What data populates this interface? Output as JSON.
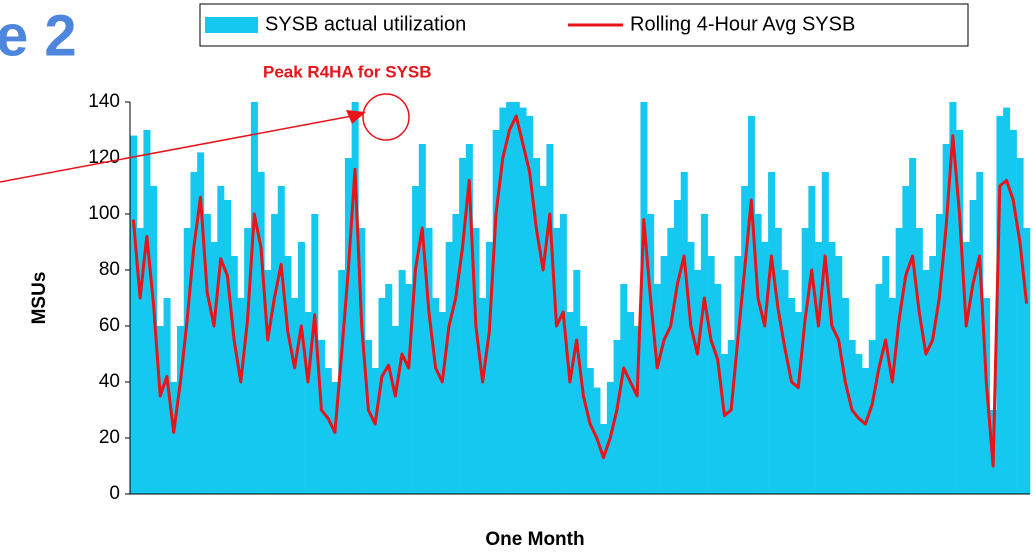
{
  "chart_data": {
    "type": "bar_line",
    "title": "e 2",
    "annotation": "Peak R4HA for SYSB",
    "ylabel": "MSUs",
    "xlabel": "One Month",
    "ylim": [
      0,
      140
    ],
    "yticks": [
      0,
      20,
      40,
      60,
      80,
      100,
      120,
      140
    ],
    "series": [
      {
        "name": "SYSB actual utilization",
        "type": "bar",
        "color": "#14c8f0",
        "values": [
          128,
          95,
          130,
          110,
          60,
          70,
          40,
          60,
          95,
          115,
          122,
          100,
          90,
          110,
          105,
          85,
          70,
          95,
          140,
          115,
          80,
          100,
          110,
          85,
          70,
          90,
          65,
          100,
          55,
          45,
          40,
          80,
          120,
          140,
          95,
          55,
          45,
          70,
          75,
          60,
          80,
          75,
          110,
          125,
          95,
          70,
          65,
          90,
          100,
          120,
          125,
          95,
          70,
          90,
          130,
          138,
          140,
          140,
          138,
          135,
          120,
          110,
          125,
          95,
          100,
          65,
          80,
          60,
          45,
          38,
          25,
          40,
          55,
          75,
          65,
          60,
          140,
          100,
          75,
          85,
          95,
          105,
          115,
          90,
          80,
          100,
          85,
          75,
          50,
          55,
          85,
          110,
          135,
          100,
          90,
          115,
          95,
          80,
          70,
          65,
          95,
          110,
          90,
          115,
          90,
          85,
          70,
          55,
          50,
          45,
          55,
          75,
          85,
          70,
          95,
          110,
          120,
          95,
          80,
          85,
          100,
          125,
          140,
          130,
          90,
          105,
          115,
          70,
          30,
          135,
          138,
          130,
          120,
          95
        ]
      },
      {
        "name": "Rolling 4-Hour Avg SYSB",
        "type": "line",
        "color": "#e8141a",
        "values": [
          98,
          70,
          92,
          68,
          35,
          42,
          22,
          40,
          62,
          88,
          106,
          72,
          60,
          84,
          78,
          55,
          40,
          62,
          100,
          88,
          55,
          70,
          82,
          58,
          45,
          60,
          40,
          64,
          30,
          27,
          22,
          50,
          80,
          116,
          60,
          30,
          25,
          42,
          46,
          35,
          50,
          45,
          80,
          95,
          65,
          45,
          40,
          60,
          70,
          88,
          112,
          60,
          40,
          58,
          100,
          120,
          130,
          135,
          125,
          115,
          95,
          80,
          100,
          60,
          65,
          40,
          55,
          35,
          25,
          20,
          13,
          20,
          30,
          45,
          40,
          35,
          98,
          70,
          45,
          55,
          60,
          75,
          85,
          60,
          50,
          70,
          55,
          48,
          28,
          30,
          55,
          80,
          105,
          70,
          60,
          85,
          66,
          52,
          40,
          38,
          62,
          80,
          60,
          85,
          60,
          55,
          40,
          30,
          27,
          25,
          32,
          45,
          55,
          40,
          62,
          78,
          85,
          65,
          50,
          55,
          70,
          95,
          128,
          100,
          60,
          75,
          85,
          40,
          10,
          110,
          112,
          105,
          90,
          68
        ]
      }
    ]
  }
}
